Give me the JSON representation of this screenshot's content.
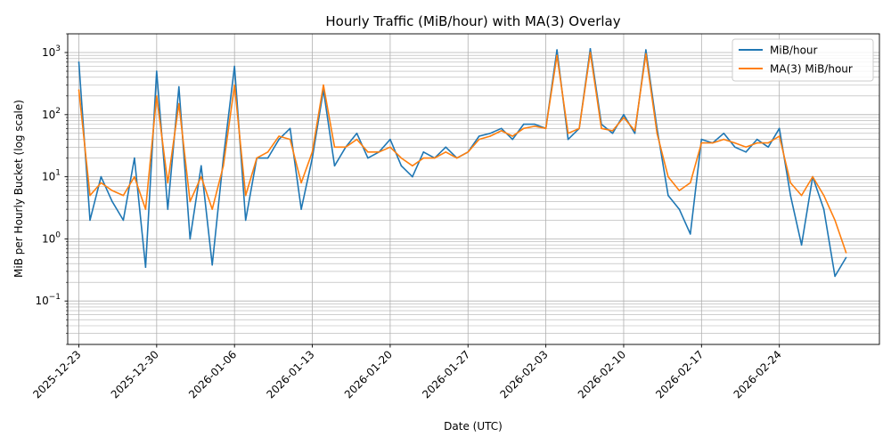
{
  "chart_data": {
    "type": "line",
    "title": "Hourly Traffic (MiB/hour) with MA(3) Overlay",
    "xlabel": "Date (UTC)",
    "ylabel": "MiB per Hourly Bucket (log scale)",
    "yscale": "log",
    "ylim": [
      0.02,
      2000
    ],
    "xlim": [
      "2025-12-22",
      "2026-03-05"
    ],
    "grid": true,
    "legend_position": "top-right",
    "x_tick_labels": [
      "2025-12-23",
      "2025-12-30",
      "2026-01-06",
      "2026-01-13",
      "2026-01-20",
      "2026-01-27",
      "2026-02-03",
      "2026-02-10",
      "2026-02-17",
      "2026-02-24"
    ],
    "y_tick_labels": [
      {
        "base": "10",
        "exp": "−1",
        "value": 0.1
      },
      {
        "base": "10",
        "exp": "0",
        "value": 1
      },
      {
        "base": "10",
        "exp": "1",
        "value": 10
      },
      {
        "base": "10",
        "exp": "2",
        "value": 100
      },
      {
        "base": "10",
        "exp": "3",
        "value": 1000
      }
    ],
    "series": [
      {
        "name": "MiB/hour",
        "color": "#1f77b4",
        "x": [
          "2025-12-23",
          "2025-12-24",
          "2025-12-25",
          "2025-12-26",
          "2025-12-27",
          "2025-12-28",
          "2025-12-29",
          "2025-12-30",
          "2025-12-31",
          "2026-01-01",
          "2026-01-02",
          "2026-01-03",
          "2026-01-04",
          "2026-01-05",
          "2026-01-06",
          "2026-01-07",
          "2026-01-08",
          "2026-01-09",
          "2026-01-10",
          "2026-01-11",
          "2026-01-12",
          "2026-01-13",
          "2026-01-14",
          "2026-01-15",
          "2026-01-16",
          "2026-01-17",
          "2026-01-18",
          "2026-01-19",
          "2026-01-20",
          "2026-01-21",
          "2026-01-22",
          "2026-01-23",
          "2026-01-24",
          "2026-01-25",
          "2026-01-26",
          "2026-01-27",
          "2026-01-28",
          "2026-01-29",
          "2026-01-30",
          "2026-01-31",
          "2026-02-01",
          "2026-02-02",
          "2026-02-03",
          "2026-02-04",
          "2026-02-05",
          "2026-02-06",
          "2026-02-07",
          "2026-02-08",
          "2026-02-09",
          "2026-02-10",
          "2026-02-11",
          "2026-02-12",
          "2026-02-13",
          "2026-02-14",
          "2026-02-15",
          "2026-02-16",
          "2026-02-17",
          "2026-02-18",
          "2026-02-19",
          "2026-02-20",
          "2026-02-21",
          "2026-02-22",
          "2026-02-23",
          "2026-02-24",
          "2026-02-25",
          "2026-02-26",
          "2026-02-27",
          "2026-02-28",
          "2026-03-01",
          "2026-03-02"
        ],
        "values": [
          700,
          2,
          10,
          4,
          2,
          20,
          0.35,
          500,
          3,
          280,
          1,
          15,
          0.38,
          20,
          600,
          2,
          20,
          20,
          40,
          60,
          3,
          20,
          250,
          15,
          30,
          50,
          20,
          25,
          40,
          15,
          10,
          25,
          20,
          30,
          20,
          25,
          45,
          50,
          60,
          40,
          70,
          70,
          60,
          1100,
          40,
          60,
          1150,
          70,
          50,
          100,
          50,
          1100,
          60,
          5,
          3,
          1.2,
          40,
          35,
          50,
          30,
          25,
          40,
          30,
          60,
          5,
          0.8,
          10,
          3,
          0.25,
          0.5
        ]
      },
      {
        "name": "MA(3) MiB/hour",
        "color": "#ff7f0e",
        "x": [
          "2025-12-23",
          "2025-12-24",
          "2025-12-25",
          "2025-12-26",
          "2025-12-27",
          "2025-12-28",
          "2025-12-29",
          "2025-12-30",
          "2025-12-31",
          "2026-01-01",
          "2026-01-02",
          "2026-01-03",
          "2026-01-04",
          "2026-01-05",
          "2026-01-06",
          "2026-01-07",
          "2026-01-08",
          "2026-01-09",
          "2026-01-10",
          "2026-01-11",
          "2026-01-12",
          "2026-01-13",
          "2026-01-14",
          "2026-01-15",
          "2026-01-16",
          "2026-01-17",
          "2026-01-18",
          "2026-01-19",
          "2026-01-20",
          "2026-01-21",
          "2026-01-22",
          "2026-01-23",
          "2026-01-24",
          "2026-01-25",
          "2026-01-26",
          "2026-01-27",
          "2026-01-28",
          "2026-01-29",
          "2026-01-30",
          "2026-01-31",
          "2026-02-01",
          "2026-02-02",
          "2026-02-03",
          "2026-02-04",
          "2026-02-05",
          "2026-02-06",
          "2026-02-07",
          "2026-02-08",
          "2026-02-09",
          "2026-02-10",
          "2026-02-11",
          "2026-02-12",
          "2026-02-13",
          "2026-02-14",
          "2026-02-15",
          "2026-02-16",
          "2026-02-17",
          "2026-02-18",
          "2026-02-19",
          "2026-02-20",
          "2026-02-21",
          "2026-02-22",
          "2026-02-23",
          "2026-02-24",
          "2026-02-25",
          "2026-02-26",
          "2026-02-27",
          "2026-02-28",
          "2026-03-01",
          "2026-03-02"
        ],
        "values": [
          250,
          5,
          8,
          6,
          5,
          10,
          3,
          200,
          8,
          150,
          4,
          10,
          3,
          15,
          300,
          5,
          20,
          25,
          45,
          40,
          8,
          25,
          300,
          30,
          30,
          40,
          25,
          25,
          30,
          20,
          15,
          20,
          20,
          25,
          20,
          25,
          40,
          45,
          55,
          45,
          60,
          65,
          60,
          900,
          50,
          60,
          1000,
          60,
          55,
          90,
          55,
          950,
          50,
          10,
          6,
          8,
          35,
          35,
          40,
          35,
          30,
          35,
          35,
          45,
          8,
          5,
          10,
          5,
          2,
          0.6
        ]
      }
    ]
  }
}
